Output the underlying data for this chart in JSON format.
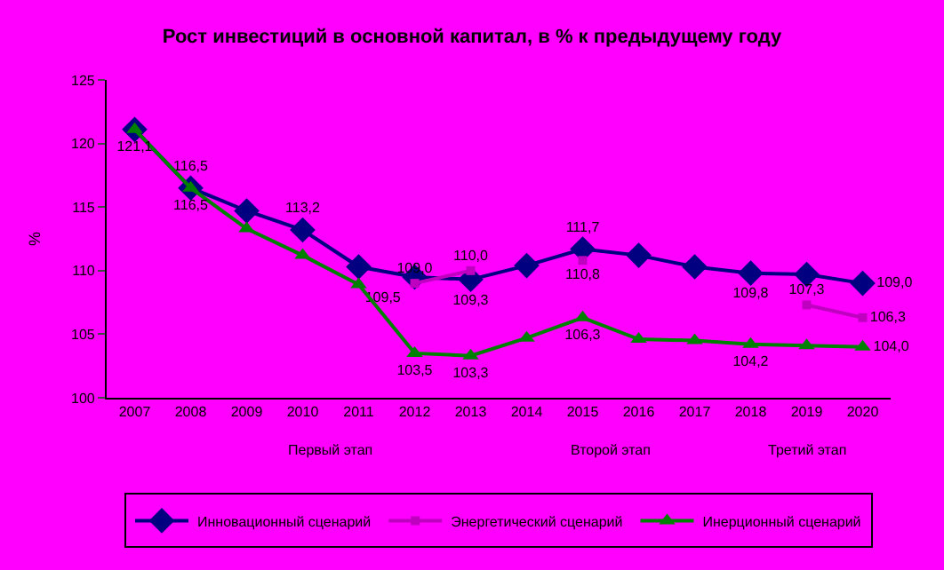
{
  "chart_data": {
    "type": "line",
    "title": "Рост инвестиций в основной капитал, в % к предыдущему году",
    "ylabel": "%",
    "categories": [
      "2007",
      "2008",
      "2009",
      "2010",
      "2011",
      "2012",
      "2013",
      "2014",
      "2015",
      "2016",
      "2017",
      "2018",
      "2019",
      "2020"
    ],
    "series": [
      {
        "name": "Инновационный сценарий",
        "color": "#000080",
        "marker": "diamond",
        "values": [
          121.1,
          116.5,
          114.7,
          113.2,
          110.3,
          109.5,
          109.3,
          110.4,
          111.7,
          111.2,
          110.3,
          109.8,
          109.7,
          109.0
        ],
        "value_labels": [
          null,
          "116,5",
          null,
          "113,2",
          null,
          "109,5",
          "109,3",
          null,
          "111,7",
          null,
          null,
          "109,8",
          null,
          "109,0"
        ]
      },
      {
        "name": "Энергетический сценарий",
        "color": "#c000c0",
        "marker": "square",
        "values": [
          null,
          null,
          null,
          null,
          null,
          109.0,
          110.0,
          null,
          110.8,
          null,
          null,
          null,
          107.3,
          106.3
        ],
        "value_labels": [
          null,
          null,
          null,
          null,
          null,
          "109,0",
          "110,0",
          null,
          "110,8",
          null,
          null,
          null,
          "107,3",
          "106,3"
        ]
      },
      {
        "name": "Инерционный сценарий",
        "color": "#008000",
        "marker": "triangle",
        "values": [
          121.1,
          116.5,
          113.3,
          111.2,
          108.9,
          103.5,
          103.3,
          104.7,
          106.3,
          104.6,
          104.5,
          104.2,
          104.1,
          104.0
        ],
        "value_labels": [
          "121,1",
          "116,5",
          null,
          null,
          null,
          "103,5",
          "103,3",
          null,
          "106,3",
          null,
          null,
          "104,2",
          null,
          "104,0"
        ]
      }
    ],
    "ylim": [
      100,
      125
    ],
    "yticks": [
      100,
      105,
      110,
      115,
      120,
      125
    ],
    "grid": false,
    "legend": "bottom",
    "annotations": [
      "Первый этап",
      "Второй этап",
      "Третий этап"
    ]
  }
}
